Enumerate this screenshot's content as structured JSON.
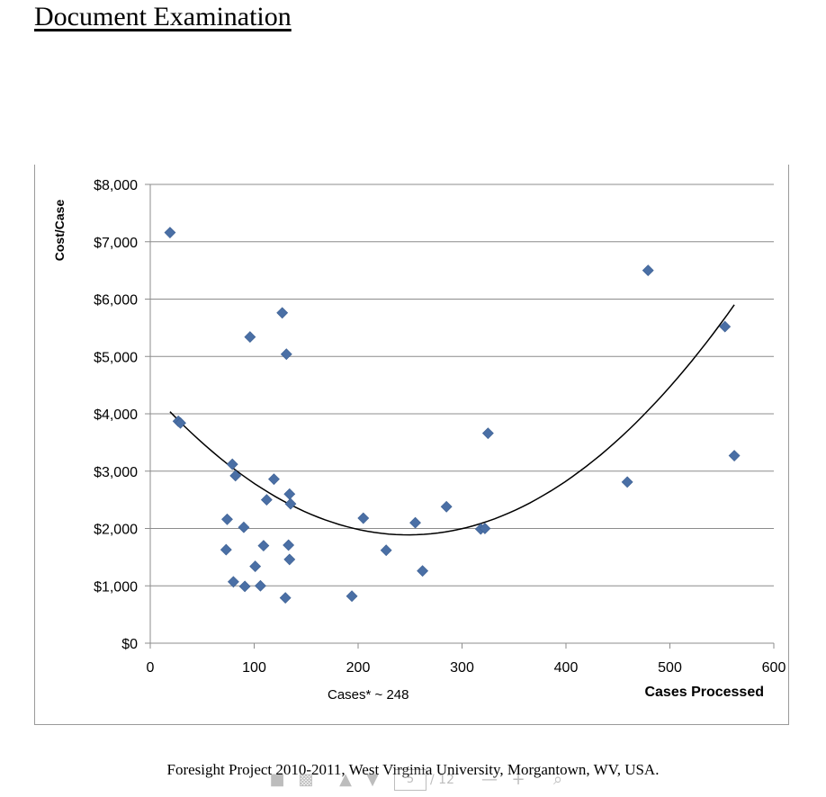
{
  "slide": {
    "title": "Document Examination",
    "footer": "Foresight Project 2010-2011, West Virginia University, Morgantown, WV, USA."
  },
  "viewer_toolbar": {
    "page_current": "5",
    "page_total": "/ 12",
    "icons": [
      "save-icon",
      "print-icon",
      "arrow-up-icon",
      "arrow-down-icon",
      "zoom-out-icon",
      "zoom-in-icon",
      "search-icon"
    ]
  },
  "chart_data": {
    "type": "scatter",
    "title": "",
    "xlabel": "Cases Processed",
    "ylabel": "Cost/Case",
    "annotation": "Cases* ~ 248",
    "xlim": [
      0,
      600
    ],
    "ylim": [
      0,
      8000
    ],
    "x_ticks": [
      0,
      100,
      200,
      300,
      400,
      500,
      600
    ],
    "x_tick_labels": [
      "0",
      "100",
      "200",
      "300",
      "400",
      "500",
      "600"
    ],
    "y_ticks": [
      0,
      1000,
      2000,
      3000,
      4000,
      5000,
      6000,
      7000,
      8000
    ],
    "y_tick_labels": [
      "$0",
      "$1,000",
      "$2,000",
      "$3,000",
      "$4,000",
      "$5,000",
      "$6,000",
      "$7,000",
      "$8,000"
    ],
    "grid": "horizontal",
    "marker_color": "#4a6fa5",
    "trend_color": "#000000",
    "series": [
      {
        "points": [
          [
            19,
            7160
          ],
          [
            27,
            3870
          ],
          [
            29,
            3840
          ],
          [
            73,
            1630
          ],
          [
            74,
            2160
          ],
          [
            79,
            3120
          ],
          [
            80,
            1070
          ],
          [
            82,
            2920
          ],
          [
            90,
            2020
          ],
          [
            91,
            990
          ],
          [
            96,
            5340
          ],
          [
            101,
            1340
          ],
          [
            106,
            1000
          ],
          [
            109,
            1700
          ],
          [
            112,
            2500
          ],
          [
            119,
            2860
          ],
          [
            127,
            5760
          ],
          [
            130,
            790
          ],
          [
            131,
            5040
          ],
          [
            133,
            1710
          ],
          [
            134,
            2600
          ],
          [
            134,
            1460
          ],
          [
            135,
            2430
          ],
          [
            194,
            820
          ],
          [
            205,
            2180
          ],
          [
            227,
            1620
          ],
          [
            255,
            2100
          ],
          [
            262,
            1260
          ],
          [
            285,
            2380
          ],
          [
            318,
            1990
          ],
          [
            322,
            2000
          ],
          [
            325,
            3660
          ],
          [
            459,
            2810
          ],
          [
            479,
            6500
          ],
          [
            553,
            5520
          ],
          [
            562,
            3270
          ]
        ]
      }
    ],
    "trendline": {
      "type": "polynomial-2",
      "x_range": [
        19,
        562
      ],
      "coefficients": [
        4406,
        -20.27,
        0.0408
      ]
    }
  }
}
